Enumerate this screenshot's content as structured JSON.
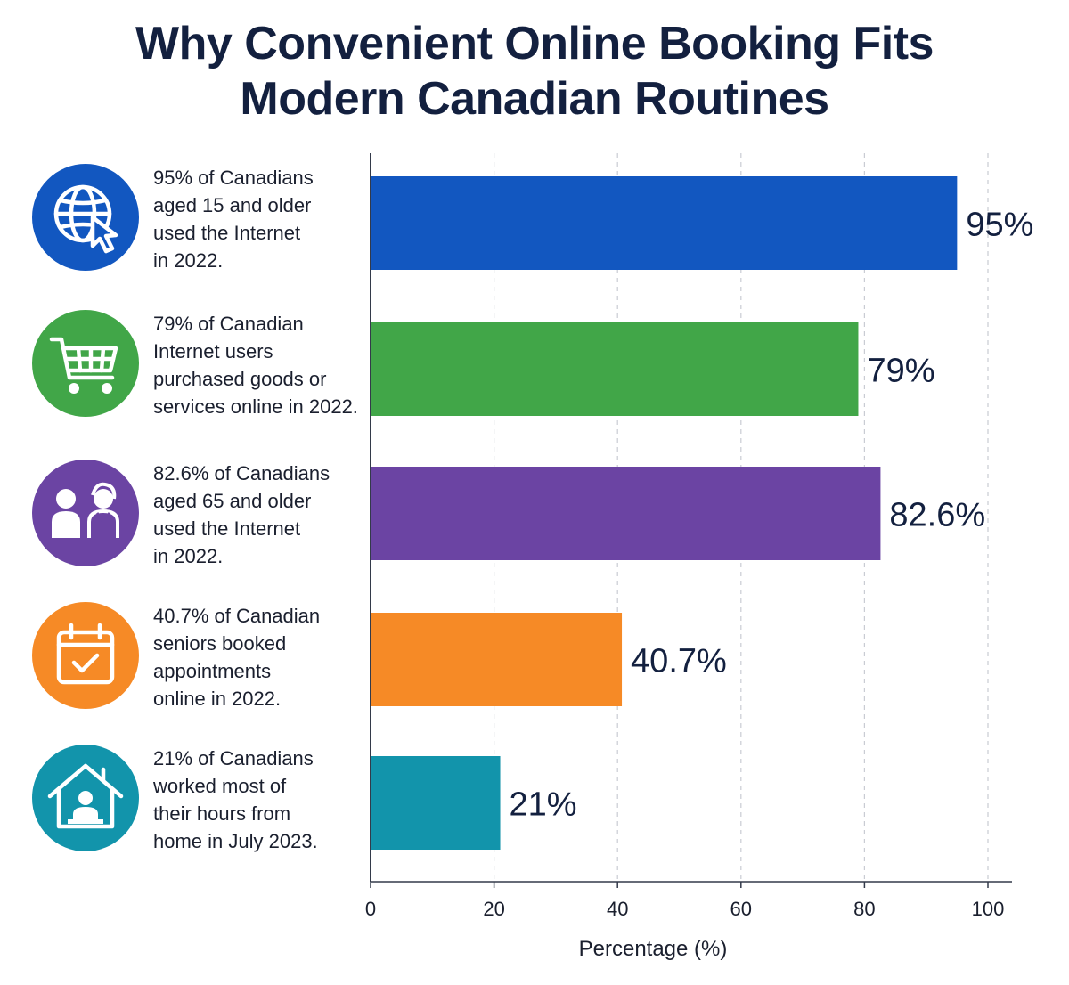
{
  "chart_data": {
    "type": "bar",
    "orientation": "horizontal",
    "title_lines": [
      "Why Convenient Online Booking Fits",
      "Modern Canadian Routines"
    ],
    "xlabel": "Percentage (%)",
    "xlim": [
      0,
      104
    ],
    "x_ticks": [
      0,
      20,
      40,
      60,
      80,
      100
    ],
    "grid": "vertical-dashed",
    "bars": [
      {
        "value": 95,
        "value_label": "95%",
        "color": "#1257c0",
        "icon": "globe-cursor-icon",
        "icon_color": "#1257c0",
        "lines": [
          "95% of Canadians",
          "aged 15 and older",
          "used the Internet",
          "in 2022."
        ]
      },
      {
        "value": 79,
        "value_label": "79%",
        "color": "#41a648",
        "icon": "shopping-cart-icon",
        "icon_color": "#41a648",
        "lines": [
          "79% of Canadian",
          "Internet users",
          "purchased goods or",
          "services online in 2022."
        ]
      },
      {
        "value": 82.6,
        "value_label": "82.6%",
        "color": "#6b44a3",
        "icon": "seniors-couple-icon",
        "icon_color": "#6b44a3",
        "lines": [
          "82.6% of Canadians",
          "aged 65 and older",
          "used the Internet",
          "in 2022."
        ]
      },
      {
        "value": 40.7,
        "value_label": "40.7%",
        "color": "#f68a26",
        "icon": "calendar-check-icon",
        "icon_color": "#f68a26",
        "lines": [
          "40.7% of Canadian",
          "seniors booked",
          "appointments",
          "online in 2022."
        ]
      },
      {
        "value": 21,
        "value_label": "21%",
        "color": "#1294ab",
        "icon": "home-office-icon",
        "icon_color": "#1294ab",
        "lines": [
          "21% of Canadians",
          "worked most of",
          "their hours from",
          "home in July 2023."
        ]
      }
    ]
  }
}
